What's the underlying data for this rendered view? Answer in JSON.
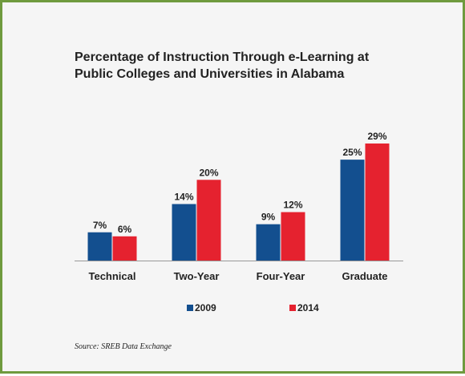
{
  "chart_data": {
    "type": "bar",
    "title_lines": [
      "Percentage of Instruction Through e-Learning at",
      "Public Colleges and Universities in Alabama"
    ],
    "categories": [
      "Technical",
      "Two-Year",
      "Four-Year",
      "Graduate"
    ],
    "series": [
      {
        "name": "2009",
        "values": [
          7,
          14,
          9,
          25
        ],
        "labels": [
          "7%",
          "14%",
          "9%",
          "25%"
        ],
        "color": "#134f8f"
      },
      {
        "name": "2014",
        "values": [
          6,
          20,
          12,
          29
        ],
        "labels": [
          "6%",
          "20%",
          "12%",
          "29%"
        ],
        "color": "#e5222f"
      }
    ],
    "ylim": [
      0,
      29
    ],
    "grid": false,
    "legend_position": "bottom",
    "source": "Source: SREB Data Exchange"
  },
  "colors": {
    "border": "#6f9a3e",
    "background": "#f5f5f5"
  }
}
